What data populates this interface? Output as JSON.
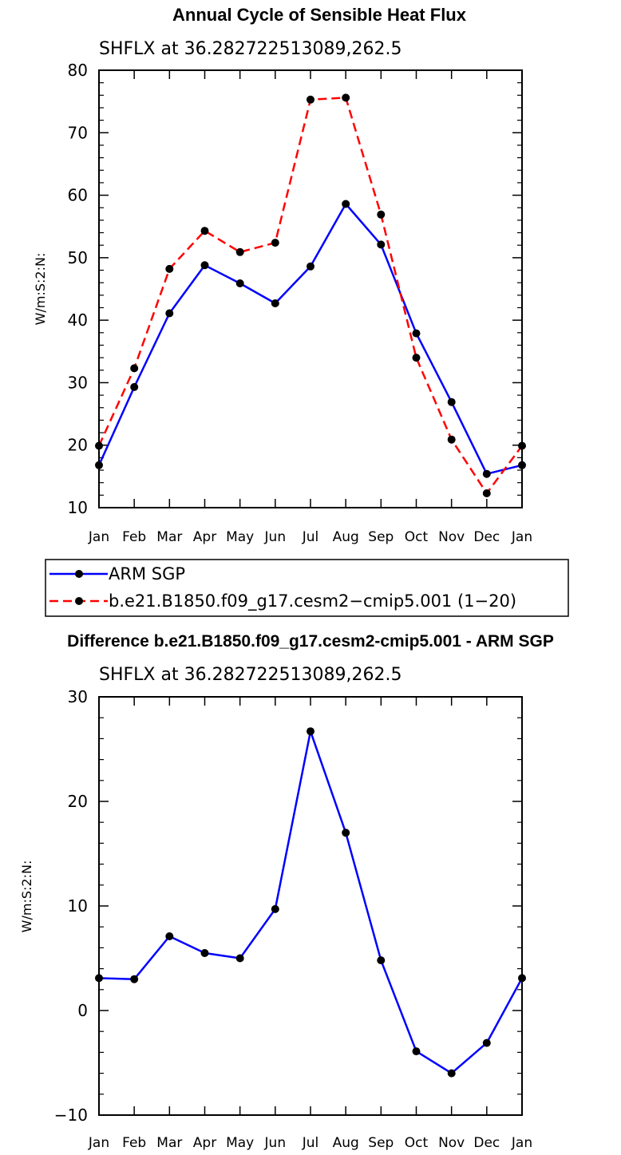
{
  "chart_data": [
    {
      "type": "line",
      "title": "Annual Cycle of Sensible Heat Flux",
      "subtitle": "SHFLX at 36.282722513089,262.5",
      "ylabel": "W/m:S:2:N:",
      "ylim": [
        10,
        80
      ],
      "yticks": [
        10,
        20,
        30,
        40,
        50,
        60,
        70,
        80
      ],
      "yticklabels": [
        "10",
        "20",
        "30",
        "40",
        "50",
        "60",
        "70",
        "80"
      ],
      "categories": [
        "Jan",
        "Feb",
        "Mar",
        "Apr",
        "May",
        "Jun",
        "Jul",
        "Aug",
        "Sep",
        "Oct",
        "Nov",
        "Dec",
        "Jan"
      ],
      "series": [
        {
          "name": "ARM SGP",
          "color": "#0000ff",
          "dash": "solid",
          "values": [
            16.8,
            29.3,
            41.1,
            48.8,
            45.9,
            42.7,
            48.6,
            58.6,
            52.1,
            37.9,
            26.9,
            15.4,
            16.8
          ]
        },
        {
          "name": "b.e21.B1850.f09_g17.cesm2−cmip5.001 (1−20)",
          "color": "#ff0000",
          "dash": "dashed",
          "values": [
            19.9,
            32.3,
            48.2,
            54.3,
            50.9,
            52.4,
            75.3,
            75.6,
            56.9,
            34.0,
            20.9,
            12.3,
            19.9
          ]
        }
      ],
      "legend": [
        {
          "label": "ARM SGP"
        },
        {
          "label": "b.e21.B1850.f09_g17.cesm2−cmip5.001 (1−20)"
        }
      ]
    },
    {
      "type": "line",
      "title": "Difference b.e21.B1850.f09_g17.cesm2-cmip5.001 - ARM SGP",
      "subtitle": "SHFLX at 36.282722513089,262.5",
      "ylabel": "W/m:S:2:N:",
      "ylim": [
        -10,
        30
      ],
      "yticks": [
        -10,
        0,
        10,
        20,
        30
      ],
      "yticklabels": [
        "−10",
        "0",
        "10",
        "20",
        "30"
      ],
      "categories": [
        "Jan",
        "Feb",
        "Mar",
        "Apr",
        "May",
        "Jun",
        "Jul",
        "Aug",
        "Sep",
        "Oct",
        "Nov",
        "Dec",
        "Jan"
      ],
      "series": [
        {
          "name": "Difference",
          "color": "#0000ff",
          "dash": "solid",
          "values": [
            3.1,
            3.0,
            7.1,
            5.5,
            5.0,
            9.7,
            26.7,
            17.0,
            4.8,
            -3.9,
            -6.0,
            -3.1,
            3.1
          ]
        }
      ]
    }
  ]
}
